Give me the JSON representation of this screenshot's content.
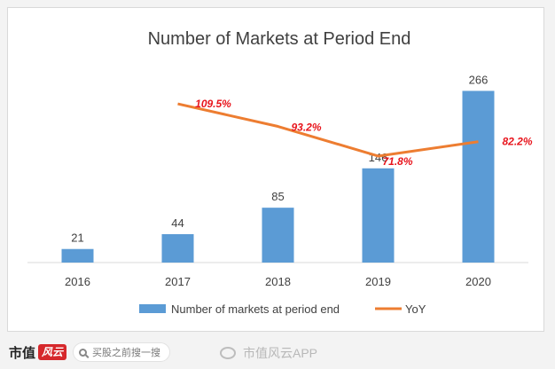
{
  "chart_data": {
    "type": "bar",
    "title": "Number of Markets at Period End",
    "categories": [
      "2016",
      "2017",
      "2018",
      "2019",
      "2020"
    ],
    "series": [
      {
        "name": "Number of markets at period end",
        "type": "bar",
        "values": [
          21,
          44,
          85,
          146,
          266
        ],
        "labels": [
          "21",
          "44",
          "85",
          "146",
          "266"
        ],
        "color": "#5b9bd5"
      },
      {
        "name": "YoY",
        "type": "line",
        "values": [
          null,
          109.5,
          93.2,
          71.8,
          82.2
        ],
        "labels": [
          "",
          "109.5%",
          "93.2%",
          "71.8%",
          "82.2%"
        ],
        "color": "#ed7d31"
      }
    ],
    "bar_ylim": [
      0,
      290
    ],
    "line_ylim": [
      -5,
      130
    ],
    "grid": false,
    "legend": "bottom",
    "line_label_color": "#e8141c"
  },
  "footer": {
    "brand": "市值",
    "brand_mark": "风云",
    "search_text": "买股之前搜一搜",
    "watermark_text": "市值风云APP"
  }
}
